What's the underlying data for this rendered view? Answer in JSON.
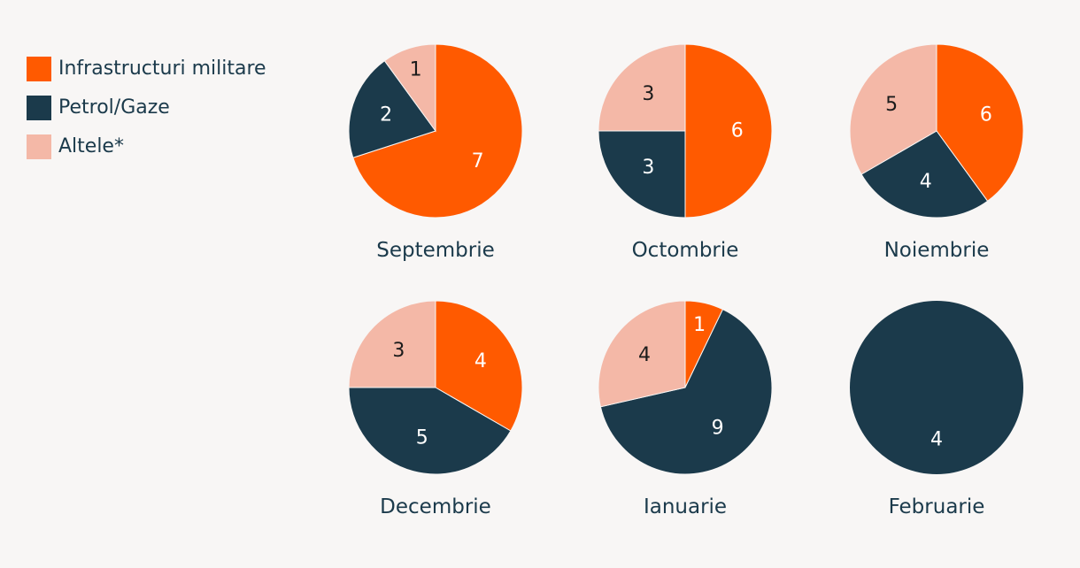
{
  "legend": {
    "items": [
      {
        "label": "Infrastructuri militare",
        "color": "#ff5a00"
      },
      {
        "label": "Petrol/Gaze",
        "color": "#1b3a4b"
      },
      {
        "label": "Altele*",
        "color": "#f4b8a7"
      }
    ]
  },
  "chart_data": {
    "type": "pie",
    "series_names": [
      "Infrastructuri militare",
      "Petrol/Gaze",
      "Altele*"
    ],
    "colors": [
      "#ff5a00",
      "#1b3a4b",
      "#f4b8a7"
    ],
    "charts": [
      {
        "title": "Septembrie",
        "values": [
          7,
          2,
          1
        ]
      },
      {
        "title": "Octombrie",
        "values": [
          6,
          3,
          3
        ]
      },
      {
        "title": "Noiembrie",
        "values": [
          6,
          4,
          5
        ]
      },
      {
        "title": "Decembrie",
        "values": [
          4,
          5,
          3
        ]
      },
      {
        "title": "Ianuarie",
        "values": [
          1,
          9,
          4
        ]
      },
      {
        "title": "Februarie",
        "values": [
          0,
          4,
          0
        ]
      }
    ]
  }
}
